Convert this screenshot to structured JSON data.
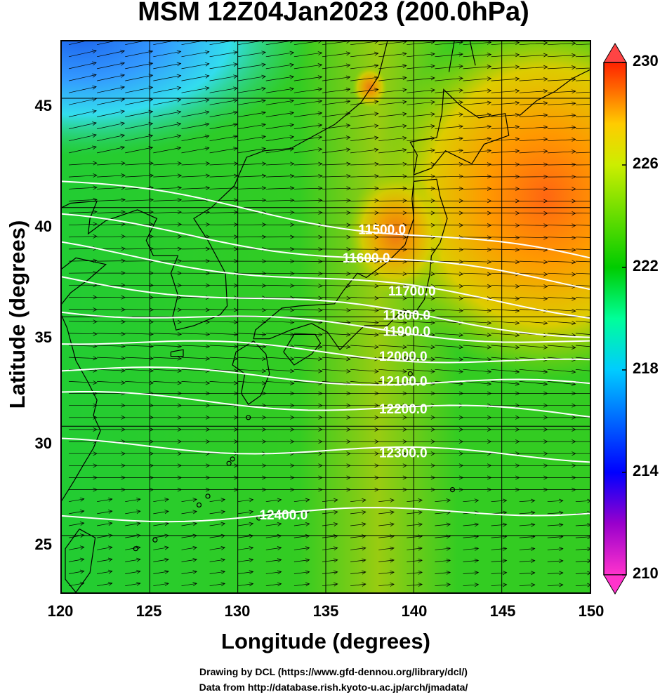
{
  "title": "MSM 12Z04Jan2023 (200.0hPa)",
  "xlabel": "Longitude (degrees)",
  "ylabel": "Latitude  (degrees)",
  "x_ticks": [
    "120",
    "125",
    "130",
    "135",
    "140",
    "145",
    "150"
  ],
  "y_ticks": [
    "45",
    "40",
    "35",
    "30",
    "25"
  ],
  "colorbar_ticks": [
    "230",
    "226",
    "222",
    "218",
    "214",
    "210"
  ],
  "credits": {
    "line1": "Drawing by DCL (https://www.gfd-dennou.org/library/dcl/)",
    "line2": "Data from http://database.rish.kyoto-u.ac.jp/arch/jmadata/"
  },
  "contour_labels": [
    "11500.0",
    "11600.0",
    "11700.0",
    "11800.0",
    "11900.0",
    "12000.0",
    "12100.0",
    "12200.0",
    "12300.0",
    "12400.0"
  ],
  "map": {
    "lon_range": [
      120,
      150
    ],
    "lat_range": [
      22.4,
      47.6
    ],
    "colorbar_range": [
      210,
      230
    ],
    "colorbar_colors": [
      "#ff33cc",
      "#9900cc",
      "#0000ff",
      "#0066ff",
      "#00ccff",
      "#00ff99",
      "#00cc00",
      "#66dd00",
      "#ccee00",
      "#ffcc00",
      "#ff6600",
      "#ff2200"
    ],
    "contours": [
      {
        "label": "11500.0",
        "lat_start": 41.2,
        "lat_end": 37.6,
        "label_lon": 138.2
      },
      {
        "label": "11600.0",
        "lat_start": 39.5,
        "lat_end": 36.4,
        "label_lon": 137.3
      },
      {
        "label": "11700.0",
        "lat_start": 38.2,
        "lat_end": 35.2,
        "label_lon": 139.9
      },
      {
        "label": "11800.0",
        "lat_start": 36.8,
        "lat_end": 34.2,
        "label_lon": 139.6
      },
      {
        "label": "11900.0",
        "lat_start": 35.4,
        "lat_end": 33.8,
        "label_lon": 139.6
      },
      {
        "label": "12000.0",
        "lat_start": 34.0,
        "lat_end": 32.8,
        "label_lon": 139.4
      },
      {
        "label": "12100.0",
        "lat_start": 32.6,
        "lat_end": 31.8,
        "label_lon": 139.4
      },
      {
        "label": "12200.0",
        "lat_start": 31.4,
        "lat_end": 30.5,
        "label_lon": 139.4
      },
      {
        "label": "12300.0",
        "lat_start": 29.2,
        "lat_end": 28.6,
        "label_lon": 139.4
      },
      {
        "label": "12400.0",
        "lat_start": 25.8,
        "lat_end": 26.2,
        "label_lon": 132.6
      }
    ]
  }
}
